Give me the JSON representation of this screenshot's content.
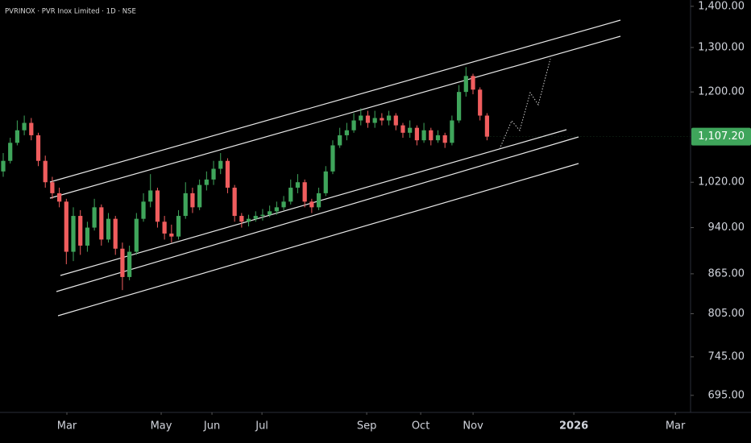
{
  "chart_data": {
    "type": "candlestick",
    "title": "PVRINOX · PVR Inox Limited · 1D · NSE",
    "up_color": "#3fa55b",
    "down_color": "#f05d5e",
    "log_scale": true,
    "ylim": [
      674,
      1416
    ],
    "yticks": [
      {
        "value": 1400,
        "label": "1,400.00"
      },
      {
        "value": 1300,
        "label": "1,300.00"
      },
      {
        "value": 1200,
        "label": "1,200.00"
      },
      {
        "value": 1020,
        "label": "1,020.00"
      },
      {
        "value": 940,
        "label": "940.00"
      },
      {
        "value": 865,
        "label": "865.00"
      },
      {
        "value": 805,
        "label": "805.00"
      },
      {
        "value": 745,
        "label": "745.00"
      },
      {
        "value": 695,
        "label": "695.00"
      }
    ],
    "last_price": {
      "value": 1107.2,
      "label": "1,107.20"
    },
    "xlim": [
      -0.46,
      97.8
    ],
    "xticks": [
      {
        "value": 9.08,
        "label": "Mar"
      },
      {
        "value": 22.53,
        "label": "May"
      },
      {
        "value": 29.77,
        "label": "Jun"
      },
      {
        "value": 36.9,
        "label": "Jul"
      },
      {
        "value": 51.84,
        "label": "Sep"
      },
      {
        "value": 59.54,
        "label": "Oct"
      },
      {
        "value": 67.01,
        "label": "Nov"
      },
      {
        "value": 81.38,
        "label": "2026"
      },
      {
        "value": 95.86,
        "label": "Mar"
      }
    ],
    "open": [
      1040,
      1060,
      1095,
      1120,
      1135,
      1110,
      1060,
      1020,
      1000,
      985,
      900,
      960,
      910,
      940,
      975,
      920,
      955,
      905,
      860,
      900,
      955,
      985,
      1005,
      950,
      930,
      925,
      960,
      1000,
      975,
      1015,
      1025,
      1045,
      1060,
      1010,
      960,
      950,
      955,
      960,
      962,
      968,
      975,
      985,
      1010,
      1020,
      985,
      975,
      1000,
      1040,
      1090,
      1110,
      1120,
      1140,
      1150,
      1135,
      1145,
      1140,
      1150,
      1130,
      1115,
      1125,
      1100,
      1120,
      1100,
      1110,
      1095,
      1140,
      1200,
      1235,
      1205,
      1150
    ],
    "high": [
      1075,
      1105,
      1140,
      1150,
      1145,
      1115,
      1070,
      1030,
      1010,
      990,
      975,
      970,
      950,
      990,
      980,
      965,
      960,
      915,
      910,
      965,
      1000,
      1035,
      1010,
      960,
      945,
      970,
      1020,
      1010,
      1025,
      1040,
      1060,
      1075,
      1065,
      1015,
      965,
      962,
      968,
      972,
      978,
      985,
      995,
      1025,
      1035,
      1025,
      990,
      1010,
      1050,
      1100,
      1125,
      1135,
      1155,
      1165,
      1160,
      1160,
      1155,
      1160,
      1155,
      1135,
      1140,
      1130,
      1135,
      1125,
      1120,
      1115,
      1150,
      1215,
      1255,
      1240,
      1210,
      1155
    ],
    "low": [
      1030,
      1055,
      1090,
      1110,
      1100,
      1050,
      1010,
      990,
      975,
      880,
      885,
      895,
      900,
      935,
      910,
      915,
      895,
      840,
      855,
      895,
      950,
      975,
      940,
      920,
      915,
      920,
      955,
      965,
      970,
      1005,
      1015,
      1035,
      1000,
      950,
      940,
      942,
      950,
      952,
      958,
      962,
      970,
      980,
      1000,
      975,
      965,
      970,
      995,
      1035,
      1085,
      1100,
      1115,
      1130,
      1125,
      1125,
      1130,
      1130,
      1120,
      1105,
      1105,
      1090,
      1095,
      1090,
      1095,
      1085,
      1090,
      1135,
      1190,
      1195,
      1140,
      1100
    ],
    "close": [
      1060,
      1095,
      1120,
      1135,
      1110,
      1060,
      1020,
      1000,
      985,
      900,
      960,
      910,
      940,
      975,
      920,
      955,
      905,
      860,
      900,
      955,
      985,
      1005,
      950,
      930,
      925,
      960,
      1000,
      975,
      1015,
      1025,
      1045,
      1060,
      1010,
      960,
      950,
      955,
      960,
      962,
      968,
      975,
      985,
      1010,
      1020,
      985,
      975,
      1000,
      1040,
      1090,
      1110,
      1120,
      1140,
      1150,
      1135,
      1145,
      1140,
      1150,
      1130,
      1115,
      1125,
      1100,
      1120,
      1100,
      1110,
      1095,
      1140,
      1200,
      1235,
      1205,
      1150,
      1107.2
    ]
  }
}
